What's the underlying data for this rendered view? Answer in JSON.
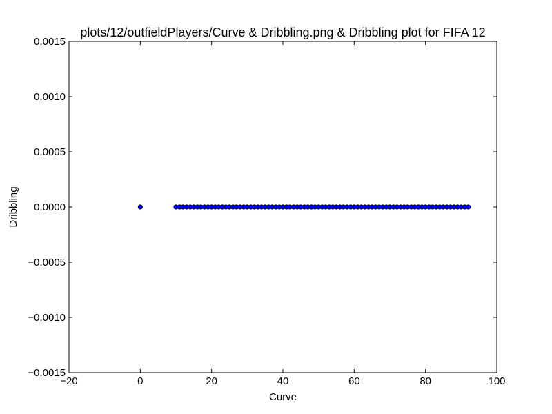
{
  "chart_data": {
    "type": "scatter",
    "title": "plots/12/outfieldPlayers/Curve & Dribbling.png & Dribbling plot for FIFA 12",
    "xlabel": "Curve",
    "ylabel": "Dribbling",
    "xlim": [
      -20,
      100
    ],
    "ylim": [
      -0.0015,
      0.0015
    ],
    "x_ticks": [
      -20,
      0,
      20,
      40,
      60,
      80,
      100
    ],
    "x_tick_labels": [
      "−20",
      "0",
      "20",
      "40",
      "60",
      "80",
      "100"
    ],
    "y_ticks": [
      0.0015,
      0.001,
      0.0005,
      0.0,
      -0.0005,
      -0.001,
      -0.0015
    ],
    "y_tick_labels": [
      "0.0015",
      "0.0010",
      "0.0005",
      "0.0000",
      "−0.0005",
      "−0.0010",
      "−0.0015"
    ],
    "grid": false,
    "marker_color": "#0000ff",
    "series": [
      {
        "x": [
          0,
          10,
          11,
          12,
          13,
          14,
          15,
          16,
          17,
          18,
          19,
          20,
          21,
          22,
          23,
          24,
          25,
          26,
          27,
          28,
          29,
          30,
          31,
          32,
          33,
          34,
          35,
          36,
          37,
          38,
          39,
          40,
          41,
          42,
          43,
          44,
          45,
          46,
          47,
          48,
          49,
          50,
          51,
          52,
          53,
          54,
          55,
          56,
          57,
          58,
          59,
          60,
          61,
          62,
          63,
          64,
          65,
          66,
          67,
          68,
          69,
          70,
          71,
          72,
          73,
          74,
          75,
          76,
          77,
          78,
          79,
          80,
          81,
          82,
          83,
          84,
          85,
          86,
          87,
          88,
          89,
          90,
          91,
          92
        ],
        "y": [
          0,
          0,
          0,
          0,
          0,
          0,
          0,
          0,
          0,
          0,
          0,
          0,
          0,
          0,
          0,
          0,
          0,
          0,
          0,
          0,
          0,
          0,
          0,
          0,
          0,
          0,
          0,
          0,
          0,
          0,
          0,
          0,
          0,
          0,
          0,
          0,
          0,
          0,
          0,
          0,
          0,
          0,
          0,
          0,
          0,
          0,
          0,
          0,
          0,
          0,
          0,
          0,
          0,
          0,
          0,
          0,
          0,
          0,
          0,
          0,
          0,
          0,
          0,
          0,
          0,
          0,
          0,
          0,
          0,
          0,
          0,
          0,
          0,
          0,
          0,
          0,
          0,
          0,
          0,
          0,
          0,
          0,
          0,
          0
        ]
      }
    ]
  }
}
